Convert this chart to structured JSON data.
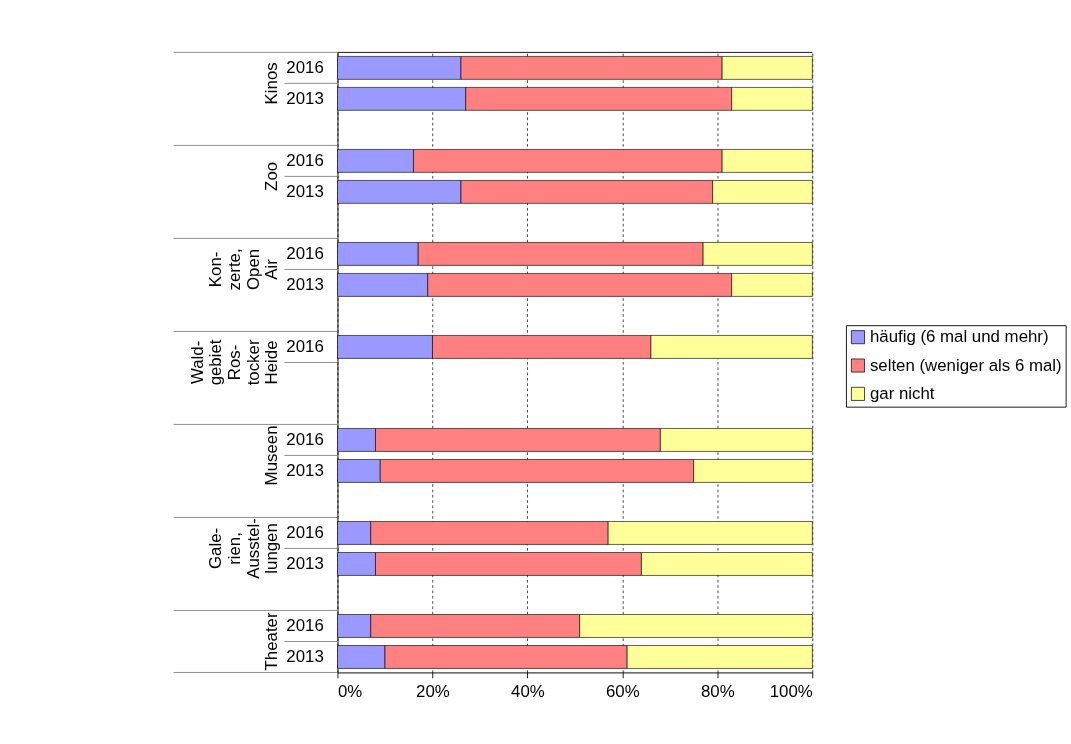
{
  "chart_data": {
    "type": "bar",
    "orientation": "horizontal",
    "stacked": true,
    "categories": [
      "2016",
      "2013",
      null,
      "2016",
      "2013",
      null,
      "2016",
      "2013",
      null,
      "2016",
      null,
      null,
      "2016",
      "2013",
      null,
      "2016",
      "2013",
      null,
      "2016",
      "2013"
    ],
    "series": [
      {
        "name": "häufig (6 mal und mehr)",
        "color": "#9999ff",
        "values": [
          26,
          27,
          null,
          16,
          26,
          null,
          17,
          19,
          null,
          20,
          null,
          null,
          8,
          9,
          null,
          7,
          8,
          null,
          7,
          10
        ]
      },
      {
        "name": "selten (weniger als 6 mal)",
        "color": "#ff8080",
        "values": [
          55,
          56,
          null,
          65,
          53,
          null,
          60,
          64,
          null,
          46,
          null,
          null,
          60,
          66,
          null,
          50,
          56,
          null,
          44,
          51
        ]
      },
      {
        "name": "gar nicht",
        "color": "#ffff99",
        "values": [
          19,
          17,
          null,
          19,
          21,
          null,
          23,
          17,
          null,
          34,
          null,
          null,
          32,
          25,
          null,
          43,
          36,
          null,
          49,
          39
        ]
      }
    ],
    "annotations": [
      "Kinos",
      "Zoo",
      "Kon-\nzerte,\nOpen\nAir",
      "Wald-\ngebiet\nRos-\ntocker\nHeide",
      "Museen",
      "Gale-\nrien,\nAusstel-\nlungen",
      "Theater"
    ],
    "xlim": [
      0,
      100
    ],
    "xticks": [
      {
        "value": 0,
        "label": "0%"
      },
      {
        "value": 20,
        "label": "20%"
      },
      {
        "value": 40,
        "label": "40%"
      },
      {
        "value": 60,
        "label": "60%"
      },
      {
        "value": 80,
        "label": "80%"
      },
      {
        "value": 100,
        "label": "100%"
      }
    ],
    "grid": "x",
    "legend": "right"
  }
}
